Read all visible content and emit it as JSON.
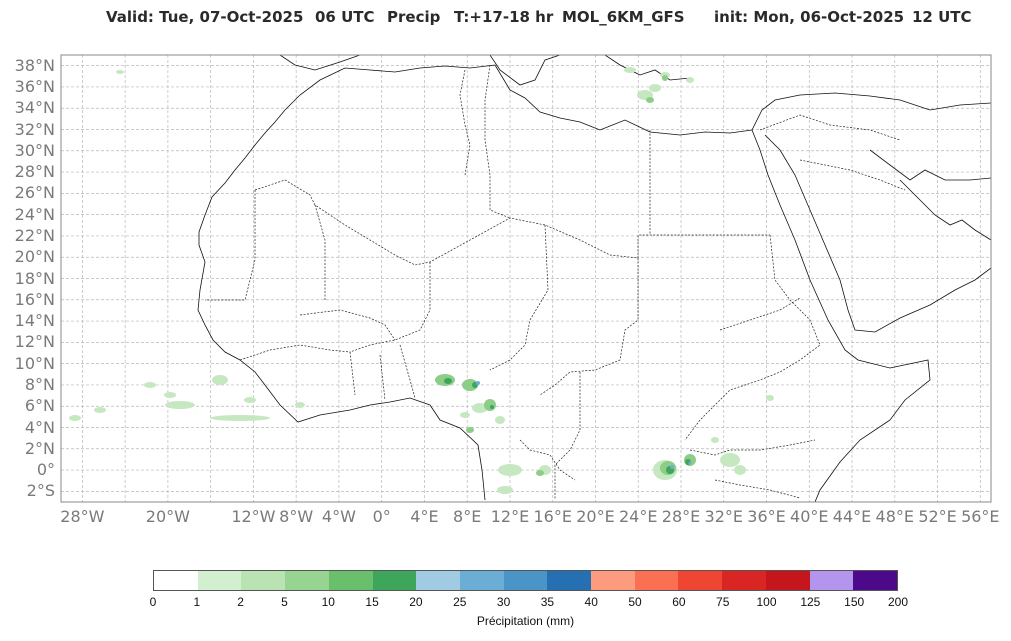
{
  "header": {
    "valid": "Valid: Tue, 07-Oct-2025",
    "hour": "06 UTC",
    "param": "Precip",
    "trange": "T:+17-18 hr",
    "model": "MOL_6KM_GFS",
    "init": "init: Mon, 06-Oct-2025",
    "init_hour": "12 UTC"
  },
  "axes": {
    "lat_labels": [
      "38°N",
      "36°N",
      "34°N",
      "32°N",
      "30°N",
      "28°N",
      "26°N",
      "24°N",
      "22°N",
      "20°N",
      "18°N",
      "16°N",
      "14°N",
      "12°N",
      "10°N",
      "8°N",
      "6°N",
      "4°N",
      "2°N",
      "0°",
      "2°S"
    ],
    "lon_labels": [
      "28°W",
      "20°W",
      "12°W",
      "8°W",
      "4°W",
      "0°",
      "4°E",
      "8°E",
      "12°E",
      "16°E",
      "20°E",
      "24°E",
      "28°E",
      "32°E",
      "36°E",
      "40°E",
      "44°E",
      "48°E",
      "52°E",
      "56°E"
    ],
    "lat_range": [
      -3,
      39
    ],
    "lon_range": [
      -30,
      57
    ],
    "grid": true
  },
  "colorbar": {
    "ticks": [
      "0",
      "1",
      "2",
      "5",
      "10",
      "15",
      "20",
      "25",
      "30",
      "35",
      "40",
      "50",
      "60",
      "75",
      "100",
      "125",
      "150",
      "200"
    ],
    "colors": [
      "#ffffff",
      "#d2efd0",
      "#b9e3b2",
      "#97d492",
      "#69bf6c",
      "#3da65a",
      "#a1cbe2",
      "#6aaed6",
      "#4a94c7",
      "#2470b3",
      "#fc9b7e",
      "#fb7052",
      "#ef4633",
      "#d92624",
      "#c4161c",
      "#b395ee",
      "#4c0a8a"
    ],
    "label": "Précipitation (mm)"
  }
}
